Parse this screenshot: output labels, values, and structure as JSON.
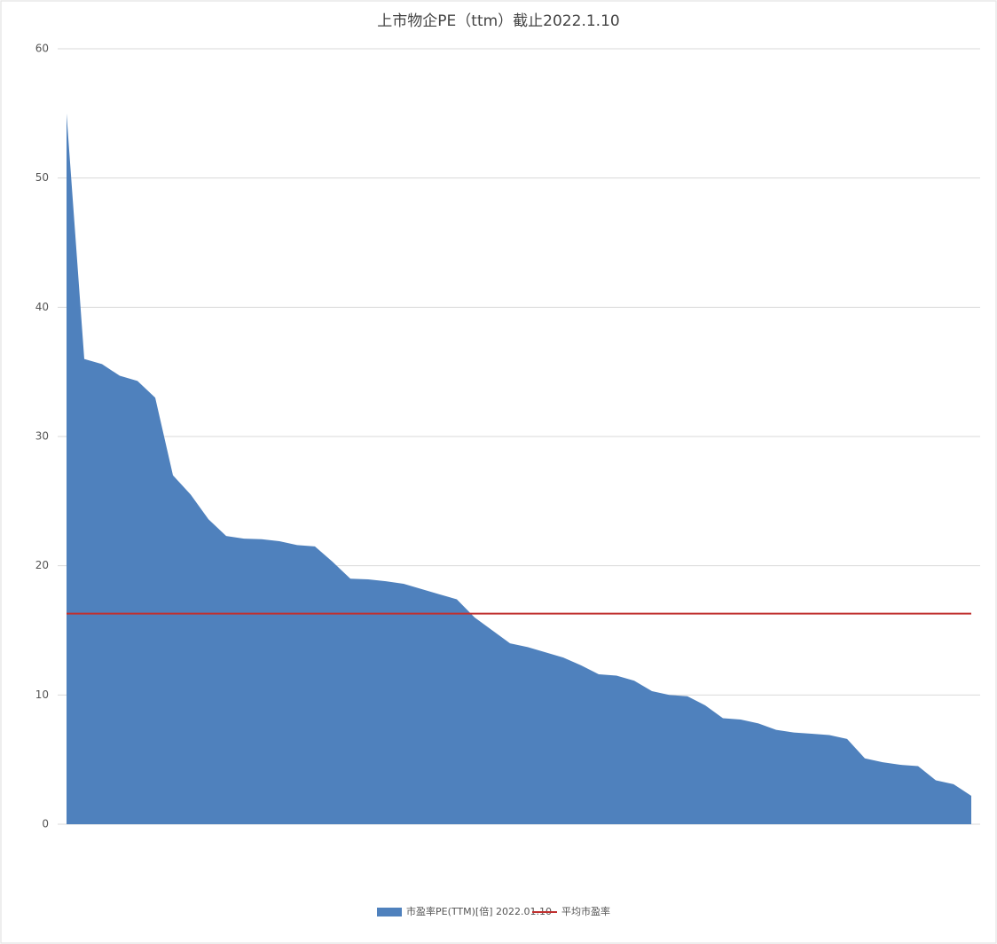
{
  "chart_data": {
    "type": "area",
    "title": "上市物企PE（ttm）截止2022.1.10",
    "categories": [
      null,
      null,
      null,
      null,
      null,
      null,
      null,
      null,
      null,
      null,
      null,
      null,
      null,
      null,
      null,
      null,
      null,
      null,
      null,
      null,
      null,
      null,
      null,
      null,
      null,
      null,
      null,
      null,
      null,
      null,
      null,
      null,
      null,
      null,
      null,
      null,
      null,
      null,
      null,
      null,
      null,
      null,
      null,
      null,
      null,
      null,
      null,
      null,
      null,
      null,
      null,
      null
    ],
    "series": [
      {
        "name": "市盈率PE(TTM)[倍] 2022.01.10",
        "color": "#4f81bd",
        "values": [
          55,
          36,
          35.6,
          34.7,
          34.3,
          33,
          27,
          25.5,
          23.6,
          22.3,
          22.1,
          22.05,
          21.9,
          21.6,
          21.5,
          20.3,
          19,
          18.95,
          18.8,
          18.6,
          18.2,
          17.8,
          17.4,
          16,
          15,
          14,
          13.7,
          13.3,
          12.9,
          12.3,
          11.6,
          11.5,
          11.1,
          10.3,
          10,
          9.9,
          9.2,
          8.2,
          8.1,
          7.8,
          7.3,
          7.1,
          7,
          6.9,
          6.6,
          5.1,
          4.8,
          4.6,
          4.5,
          3.4,
          3.1,
          2.2
        ]
      }
    ],
    "reference_line": {
      "name": "平均市盈率",
      "value": 16.3,
      "color": "#c0302f"
    },
    "ylim": [
      0,
      60
    ],
    "yticks": [
      0,
      10,
      20,
      30,
      40,
      50,
      60
    ],
    "grid": true
  }
}
